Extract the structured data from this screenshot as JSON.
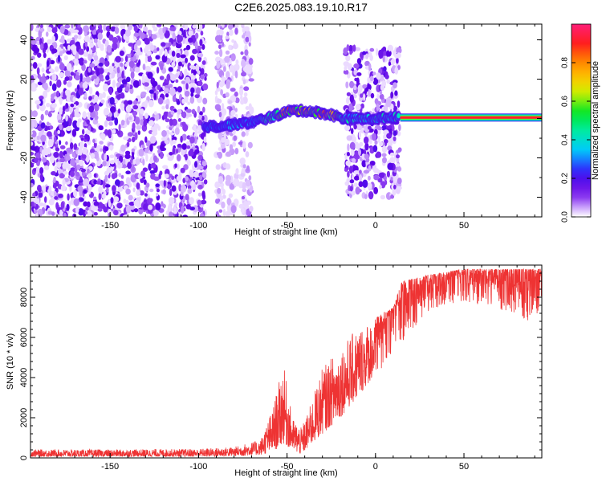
{
  "figure": {
    "title": "C2E6.2025.083.19.10.R17"
  },
  "chart_data": [
    {
      "type": "heatmap",
      "title": "C2E6.2025.083.19.10.R17",
      "xlabel": "Height of straight line (km)",
      "ylabel": "Frequency (Hz)",
      "xlim": [
        -195,
        94
      ],
      "ylim": [
        -50,
        48
      ],
      "x_ticks": [
        "-150",
        "-100",
        "-50",
        "0",
        "50"
      ],
      "y_ticks": [
        "-40",
        "-20",
        "0",
        "20",
        "40"
      ],
      "colorbar": {
        "label": "Normalized spectral amplitude",
        "range": [
          0,
          1
        ],
        "ticks": [
          "0.0",
          "0.2",
          "0.4",
          "0.6",
          "0.8"
        ]
      },
      "features": {
        "noise_regions": [
          {
            "x_from": -195,
            "x_to": -96,
            "y_from": -50,
            "y_to": 48
          },
          {
            "x_from": -90,
            "x_to": -85,
            "y_from": -50,
            "y_to": 48
          },
          {
            "x_from": -84,
            "x_to": -78,
            "y_from": -50,
            "y_to": 48
          },
          {
            "x_from": -76,
            "x_to": -70,
            "y_from": -50,
            "y_to": 48
          },
          {
            "x_from": -17,
            "x_to": 14,
            "y_from": -40,
            "y_to": 36
          }
        ],
        "signal_ridge": [
          {
            "x": -97,
            "y": -4
          },
          {
            "x": -90,
            "y": -4
          },
          {
            "x": -80,
            "y": -3
          },
          {
            "x": -70,
            "y": -2
          },
          {
            "x": -62,
            "y": 0
          },
          {
            "x": -55,
            "y": 2
          },
          {
            "x": -48,
            "y": 4
          },
          {
            "x": -40,
            "y": 4
          },
          {
            "x": -32,
            "y": 3
          },
          {
            "x": -25,
            "y": 2
          },
          {
            "x": -18,
            "y": 0
          },
          {
            "x": -10,
            "y": 0
          },
          {
            "x": 0,
            "y": 0
          },
          {
            "x": 13,
            "y": 1
          }
        ],
        "carrier": {
          "x_from": 14,
          "x_to": 94,
          "y": 0.5
        }
      }
    },
    {
      "type": "line",
      "xlabel": "Height of straight line (km)",
      "ylabel": "SNR (10 * v/v)",
      "xlim": [
        -195,
        94
      ],
      "ylim": [
        0,
        9600
      ],
      "x_ticks": [
        "-150",
        "-100",
        "-50",
        "0",
        "50"
      ],
      "y_ticks": [
        "0",
        "2000",
        "4000",
        "6000",
        "8000"
      ],
      "color": "#ee3333",
      "envelope": [
        {
          "x": -195,
          "lo": 60,
          "hi": 420
        },
        {
          "x": -150,
          "lo": 60,
          "hi": 420
        },
        {
          "x": -100,
          "lo": 60,
          "hi": 450
        },
        {
          "x": -80,
          "lo": 80,
          "hi": 550
        },
        {
          "x": -65,
          "lo": 150,
          "hi": 900
        },
        {
          "x": -58,
          "lo": 300,
          "hi": 2500
        },
        {
          "x": -52,
          "lo": 700,
          "hi": 4700
        },
        {
          "x": -47,
          "lo": 400,
          "hi": 2000
        },
        {
          "x": -42,
          "lo": 150,
          "hi": 1500
        },
        {
          "x": -38,
          "lo": 500,
          "hi": 2300
        },
        {
          "x": -30,
          "lo": 1200,
          "hi": 4500
        },
        {
          "x": -20,
          "lo": 2000,
          "hi": 5500
        },
        {
          "x": -10,
          "lo": 3000,
          "hi": 6500
        },
        {
          "x": 0,
          "lo": 4200,
          "hi": 7000
        },
        {
          "x": 10,
          "lo": 5000,
          "hi": 7500
        },
        {
          "x": 15,
          "lo": 5800,
          "hi": 8800
        },
        {
          "x": 25,
          "lo": 6700,
          "hi": 9000
        },
        {
          "x": 35,
          "lo": 7500,
          "hi": 9200
        },
        {
          "x": 50,
          "lo": 7800,
          "hi": 9400
        },
        {
          "x": 70,
          "lo": 7400,
          "hi": 9400
        },
        {
          "x": 85,
          "lo": 6800,
          "hi": 9400
        },
        {
          "x": 94,
          "lo": 7200,
          "hi": 9400
        }
      ]
    }
  ]
}
